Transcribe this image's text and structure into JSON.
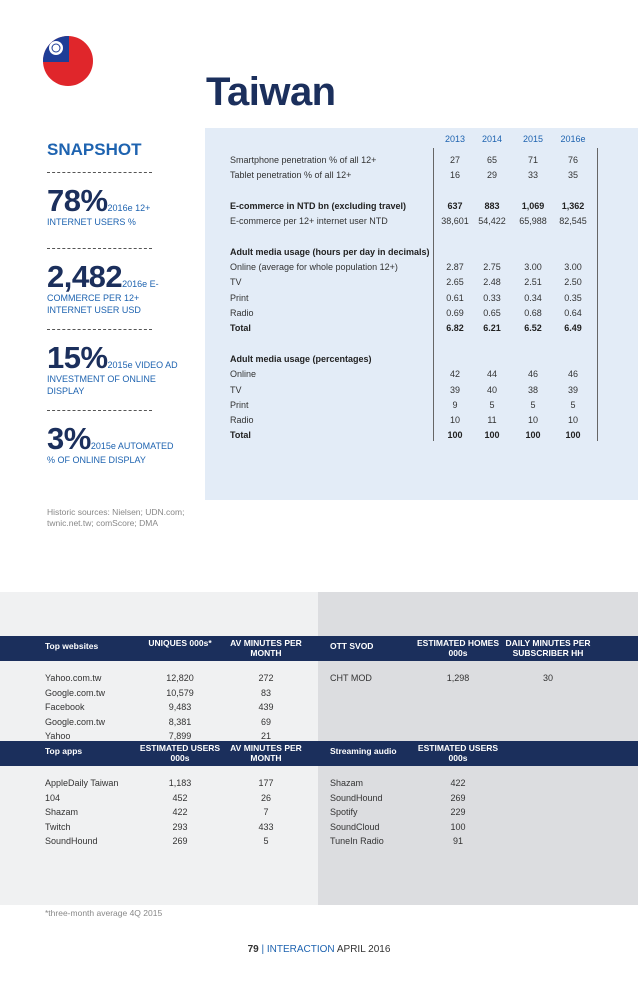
{
  "header": {
    "title": "Taiwan"
  },
  "snapshot": {
    "title": "SNAPSHOT",
    "items": [
      {
        "value": "78%",
        "label": "2016e 12+ INTERNET USERS %"
      },
      {
        "value": "2,482",
        "label": "2016e E-COMMERCE PER 12+ INTERNET USER USD"
      },
      {
        "value": "15%",
        "label": "2015e VIDEO AD INVESTMENT OF ONLINE DISPLAY"
      },
      {
        "value": "3%",
        "label": "2015e AUTOMATED % OF ONLINE DISPLAY"
      }
    ],
    "sources": "Historic sources: Nielsen; UDN.com; twnic.net.tw; comScore; DMA"
  },
  "table": {
    "columns": [
      "2013",
      "2014",
      "2015",
      "2016e"
    ],
    "groups": [
      {
        "rows": [
          {
            "label": "Smartphone penetration % of all 12+",
            "values": [
              "27",
              "65",
              "71",
              "76"
            ]
          },
          {
            "label": "Tablet penetration % of all 12+",
            "values": [
              "16",
              "29",
              "33",
              "35"
            ]
          }
        ]
      },
      {
        "rows": [
          {
            "label": "E-commerce in NTD bn (excluding travel)",
            "values": [
              "637",
              "883",
              "1,069",
              "1,362"
            ],
            "bold": true
          },
          {
            "label": "E-commerce per 12+ internet user NTD",
            "values": [
              "38,601",
              "54,422",
              "65,988",
              "82,545"
            ]
          }
        ]
      },
      {
        "heading": "Adult media usage (hours per day in decimals)",
        "rows": [
          {
            "label": "Online (average for whole population 12+)",
            "values": [
              "2.87",
              "2.75",
              "3.00",
              "3.00"
            ]
          },
          {
            "label": "TV",
            "values": [
              "2.65",
              "2.48",
              "2.51",
              "2.50"
            ]
          },
          {
            "label": "Print",
            "values": [
              "0.61",
              "0.33",
              "0.34",
              "0.35"
            ]
          },
          {
            "label": "Radio",
            "values": [
              "0.69",
              "0.65",
              "0.68",
              "0.64"
            ]
          },
          {
            "label": "Total",
            "values": [
              "6.82",
              "6.21",
              "6.52",
              "6.49"
            ],
            "bold": true
          }
        ]
      },
      {
        "heading": "Adult media usage (percentages)",
        "rows": [
          {
            "label": "Online",
            "values": [
              "42",
              "44",
              "46",
              "46"
            ]
          },
          {
            "label": "TV",
            "values": [
              "39",
              "40",
              "38",
              "39"
            ]
          },
          {
            "label": "Print",
            "values": [
              "9",
              "5",
              "5",
              "5"
            ]
          },
          {
            "label": "Radio",
            "values": [
              "10",
              "11",
              "10",
              "10"
            ]
          },
          {
            "label": "Total",
            "values": [
              "100",
              "100",
              "100",
              "100"
            ],
            "bold": true
          }
        ]
      }
    ]
  },
  "blocks": [
    {
      "headers": [
        "Top websites",
        "UNIQUES 000s*",
        "AV MINUTES PER MONTH"
      ],
      "rows": [
        [
          "Yahoo.com.tw",
          "12,820",
          "272"
        ],
        [
          "Google.com.tw",
          "10,579",
          "83"
        ],
        [
          "Facebook",
          "9,483",
          "439"
        ],
        [
          "Google.com.tw",
          "8,381",
          "69"
        ],
        [
          "Yahoo",
          "7,899",
          "21"
        ]
      ]
    },
    {
      "headers": [
        "OTT SVOD",
        "ESTIMATED HOMES 000s",
        "DAILY MINUTES PER SUBSCRIBER HH"
      ],
      "rows": [
        [
          "CHT MOD",
          "1,298",
          "30"
        ]
      ]
    },
    {
      "headers": [
        "Top apps",
        "ESTIMATED USERS 000s",
        "AV MINUTES PER MONTH"
      ],
      "rows": [
        [
          "AppleDaily Taiwan",
          "1,183",
          "177"
        ],
        [
          "104",
          "452",
          "26"
        ],
        [
          "Shazam",
          "422",
          "7"
        ],
        [
          "Twitch",
          "293",
          "433"
        ],
        [
          "SoundHound",
          "269",
          "5"
        ]
      ]
    },
    {
      "headers": [
        "Streaming audio",
        "ESTIMATED USERS 000s"
      ],
      "rows": [
        [
          "Shazam",
          "422"
        ],
        [
          "SoundHound",
          "269"
        ],
        [
          "Spotify",
          "229"
        ],
        [
          "SoundCloud",
          "100"
        ],
        [
          "TuneIn Radio",
          "91"
        ]
      ]
    }
  ],
  "footnote": "*three-month average 4Q 2015",
  "footer": {
    "page": "79",
    "separator": "|",
    "publication": "INTERACTION",
    "date": "APRIL 2016"
  }
}
